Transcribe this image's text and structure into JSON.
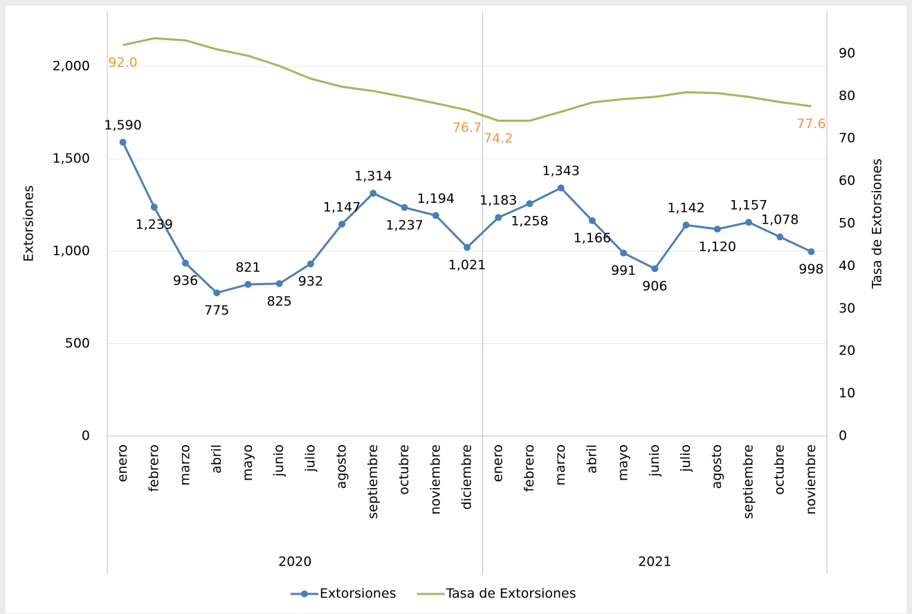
{
  "chart_data": {
    "type": "line",
    "groups": [
      {
        "label": "2020",
        "categories": [
          "enero",
          "febrero",
          "marzo",
          "abril",
          "mayo",
          "junio",
          "julio",
          "agosto",
          "septiembre",
          "octubre",
          "noviembre",
          "diciembre"
        ]
      },
      {
        "label": "2021",
        "categories": [
          "enero",
          "febrero",
          "marzo",
          "abril",
          "mayo",
          "junio",
          "julio",
          "agosto",
          "septiembre",
          "octubre",
          "noviembre"
        ]
      }
    ],
    "ylabel": "Extorsiones",
    "y2label": "Tasa de Extorsiones",
    "ylim": [
      0,
      2300
    ],
    "yticks": [
      0,
      500,
      {
        "value": 1000,
        "label": "1,000"
      },
      {
        "value": 1500,
        "label": "1,500"
      },
      {
        "value": 2000,
        "label": "2,000"
      }
    ],
    "y2lim": [
      0,
      100
    ],
    "y2ticks": [
      0,
      10,
      20,
      30,
      40,
      50,
      60,
      70,
      80,
      90
    ],
    "grid": true,
    "legend": "bottom",
    "series": [
      {
        "name": "Extorsiones",
        "color": "#4a7ebb",
        "markers": true,
        "values": [
          1590,
          1239,
          936,
          775,
          821,
          825,
          932,
          1147,
          1314,
          1237,
          1194,
          1021,
          1183,
          1258,
          1343,
          1166,
          991,
          906,
          1142,
          1120,
          1157,
          1078,
          998
        ],
        "value_labels": [
          "1,590",
          "1,239",
          "936",
          "775",
          "821",
          "825",
          "932",
          "1,147",
          "1,314",
          "1,237",
          "1,194",
          "1,021",
          "1,183",
          "1,258",
          "1,343",
          "1,166",
          "991",
          "906",
          "1,142",
          "1,120",
          "1,157",
          "1,078",
          "998"
        ]
      },
      {
        "name": "Tasa de Extorsiones",
        "color": "#9bbb59",
        "axis": "y2",
        "label_color": "#f0963c",
        "markers": false,
        "values": [
          92.0,
          93.6,
          93.1,
          91.0,
          89.5,
          87.1,
          84.1,
          82.2,
          81.2,
          79.8,
          78.3,
          76.7,
          74.2,
          74.2,
          76.3,
          78.5,
          79.3,
          79.8,
          80.9,
          80.7,
          79.8,
          78.6,
          77.6
        ],
        "value_labels": [
          "92.0",
          null,
          null,
          null,
          null,
          null,
          null,
          null,
          null,
          null,
          null,
          "76.7",
          "74.2",
          null,
          null,
          null,
          null,
          null,
          null,
          null,
          null,
          null,
          "77.6"
        ]
      }
    ]
  }
}
